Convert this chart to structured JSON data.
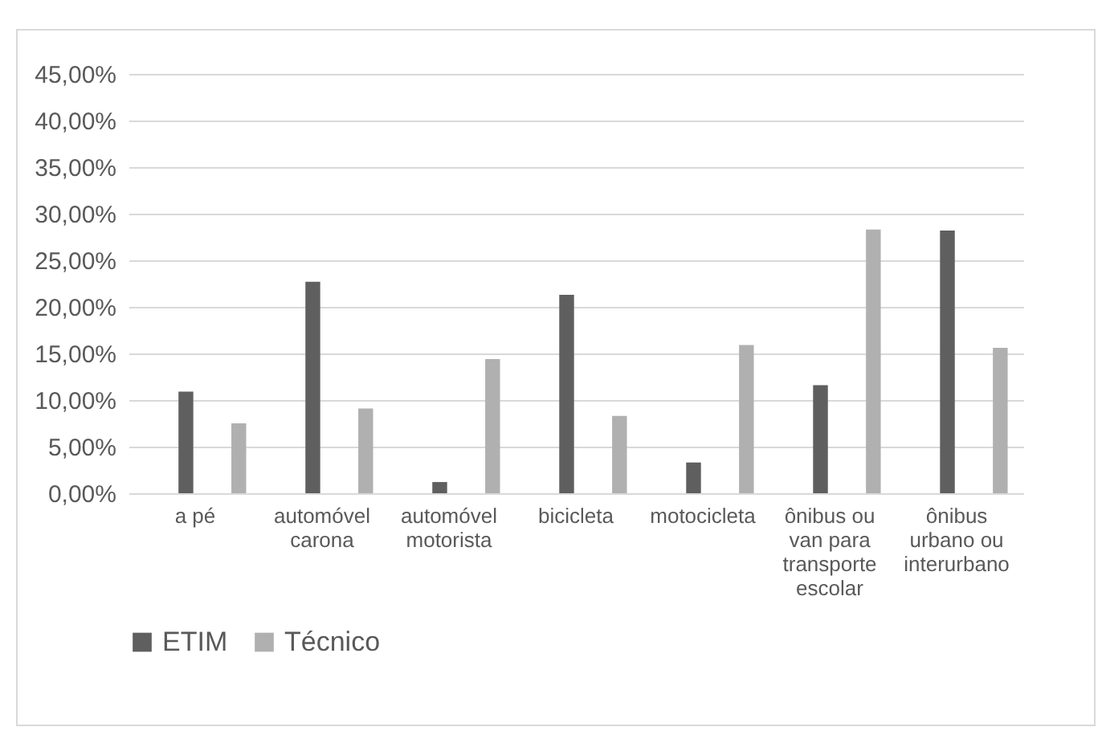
{
  "chart_data": {
    "type": "bar",
    "categories": [
      "a pé",
      "automóvel carona",
      "automóvel motorista",
      "bicicleta",
      "motocicleta",
      "ônibus ou van para transporte escolar",
      "ônibus urbano ou interurbano"
    ],
    "series": [
      {
        "name": "ETIM",
        "color": "#5f5f5f",
        "values": [
          10.9,
          22.7,
          1.2,
          21.3,
          3.3,
          11.6,
          28.2
        ]
      },
      {
        "name": "Técnico",
        "color": "#b0b0b0",
        "values": [
          7.5,
          9.1,
          14.4,
          8.3,
          15.9,
          28.3,
          15.6
        ]
      }
    ],
    "ylim": [
      0,
      45
    ],
    "yticks": [
      {
        "value": 0,
        "label": "0,00%"
      },
      {
        "value": 5,
        "label": "5,00%"
      },
      {
        "value": 10,
        "label": "10,00%"
      },
      {
        "value": 15,
        "label": "15,00%"
      },
      {
        "value": 20,
        "label": "20,00%"
      },
      {
        "value": 25,
        "label": "25,00%"
      },
      {
        "value": 30,
        "label": "30,00%"
      },
      {
        "value": 35,
        "label": "35,00%"
      },
      {
        "value": 40,
        "label": "40,00%"
      },
      {
        "value": 45,
        "label": "45,00%"
      }
    ],
    "grid": "y",
    "legend": "bottom"
  }
}
